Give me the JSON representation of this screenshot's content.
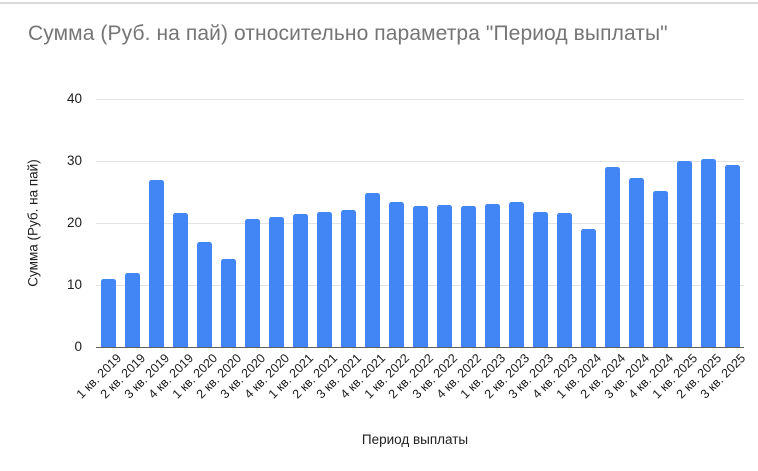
{
  "chart_data": {
    "type": "bar",
    "title": "Сумма (Руб. на пай) относительно параметра \"Период выплаты\"",
    "xlabel": "Период выплаты",
    "ylabel": "Сумма (Руб. на пай)",
    "categories": [
      "1 кв. 2019",
      "2 кв. 2019",
      "3 кв. 2019",
      "4 кв. 2019",
      "1 кв. 2020",
      "2 кв. 2020",
      "3 кв. 2020",
      "4 кв. 2020",
      "1 кв. 2021",
      "2 кв. 2021",
      "3 кв. 2021",
      "4 кв. 2021",
      "1 кв. 2022",
      "2 кв. 2022",
      "3 кв. 2022",
      "4 кв. 2022",
      "1 кв. 2023",
      "2 кв. 2023",
      "3 кв. 2023",
      "4 кв. 2023",
      "1 кв. 2024",
      "2 кв. 2024",
      "3 кв. 2024",
      "4 кв. 2024",
      "1 кв. 2025",
      "2 кв. 2025",
      "3 кв. 2025"
    ],
    "values": [
      11.0,
      12.0,
      26.9,
      21.6,
      17.0,
      14.2,
      20.6,
      21.0,
      21.5,
      21.8,
      22.1,
      24.9,
      23.4,
      22.8,
      22.9,
      22.7,
      23.1,
      23.4,
      21.8,
      21.6,
      19.0,
      29.0,
      27.2,
      25.1,
      30.0,
      30.3,
      29.4
    ],
    "ylim": [
      0,
      40
    ],
    "yticks": [
      0,
      10,
      20,
      30,
      40
    ],
    "grid": true,
    "legend": "none",
    "bar_color": "#4285f4"
  }
}
